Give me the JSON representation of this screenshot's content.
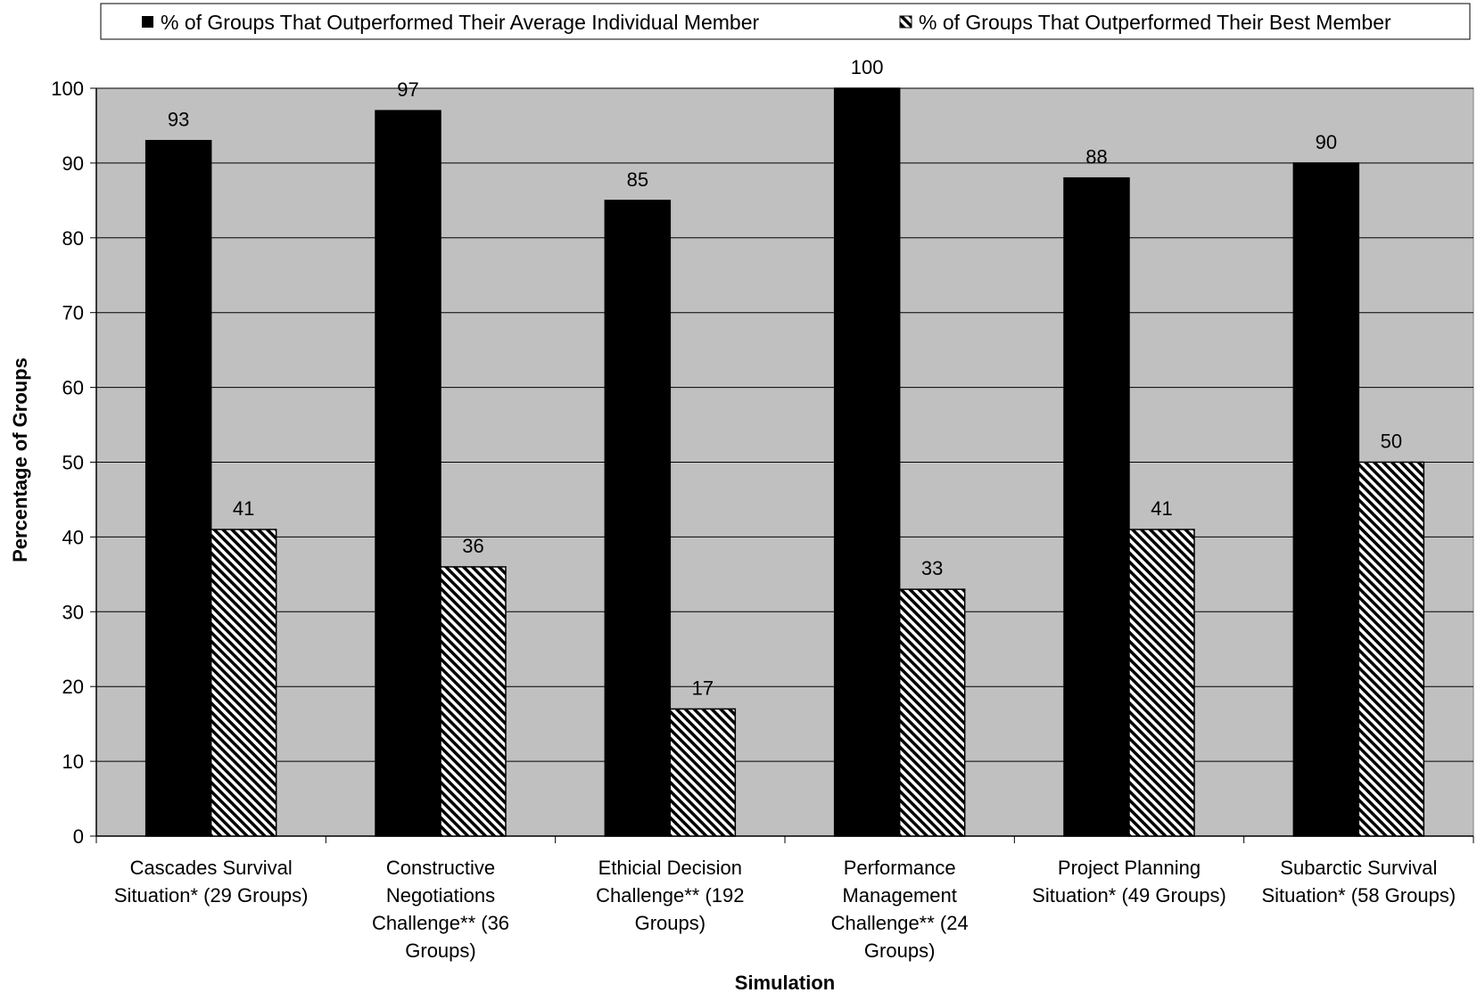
{
  "chart_data": {
    "type": "bar",
    "xlabel": "Simulation",
    "ylabel": "Percentage of Groups",
    "ylim": [
      0,
      100
    ],
    "y_ticks": [
      0,
      10,
      20,
      30,
      40,
      50,
      60,
      70,
      80,
      90,
      100
    ],
    "grid": true,
    "legend_position": "top",
    "plot_background": "#C0C0C0",
    "categories": [
      [
        "Cascades Survival",
        "Situation* (29 Groups)"
      ],
      [
        "Constructive",
        "Negotiations",
        "Challenge** (36",
        "Groups)"
      ],
      [
        "Ethicial Decision",
        "Challenge** (192",
        "Groups)"
      ],
      [
        "Performance",
        "Management",
        "Challenge** (24",
        "Groups)"
      ],
      [
        "Project Planning",
        "Situation* (49 Groups)"
      ],
      [
        "Subarctic Survival",
        "Situation* (58 Groups)"
      ]
    ],
    "series": [
      {
        "name": "% of Groups That Outperformed Their Average Individual Member",
        "fill": "solid",
        "color": "#000000",
        "values": [
          93,
          97,
          85,
          100,
          88,
          90
        ]
      },
      {
        "name": "% of Groups That Outperformed Their Best Member",
        "fill": "diagonal-hatch",
        "color": "#000000",
        "values": [
          41,
          36,
          17,
          33,
          41,
          50
        ]
      }
    ]
  }
}
